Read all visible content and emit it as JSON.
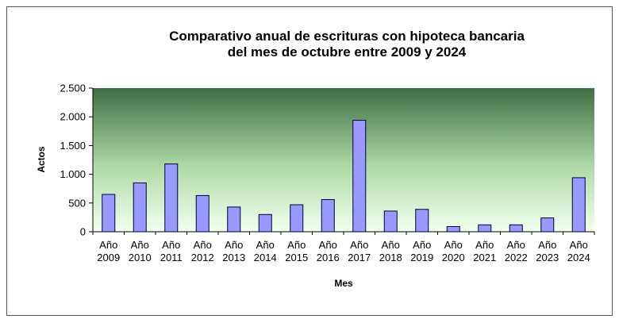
{
  "chart_data": {
    "type": "bar",
    "title": "Comparativo anual de escrituras con hipoteca bancaria",
    "subtitle": "del mes de octubre entre 2009 y 2024",
    "xlabel": "Mes",
    "ylabel": "Actos",
    "categories": [
      [
        "Año",
        "2009"
      ],
      [
        "Año",
        "2010"
      ],
      [
        "Año",
        "2011"
      ],
      [
        "Año",
        "2012"
      ],
      [
        "Año",
        "2013"
      ],
      [
        "Año",
        "2014"
      ],
      [
        "Año",
        "2015"
      ],
      [
        "Año",
        "2016"
      ],
      [
        "Año",
        "2017"
      ],
      [
        "Año",
        "2018"
      ],
      [
        "Año",
        "2019"
      ],
      [
        "Año",
        "2020"
      ],
      [
        "Año",
        "2021"
      ],
      [
        "Año",
        "2022"
      ],
      [
        "Año",
        "2023"
      ],
      [
        "Año",
        "2024"
      ]
    ],
    "values": [
      650,
      850,
      1180,
      630,
      430,
      300,
      470,
      560,
      1940,
      360,
      390,
      90,
      120,
      120,
      240,
      940
    ],
    "ylim": [
      0,
      2500
    ],
    "yticks": [
      0,
      500,
      1000,
      1500,
      2000,
      2500
    ],
    "ytick_labels": [
      "0",
      "500",
      "1.000",
      "1.500",
      "2.000",
      "2.500"
    ],
    "grid": false,
    "legend": "none",
    "colors": {
      "bar_fill": "#9999ff",
      "bar_stroke": "#000033",
      "plot_top": "#3e6e44",
      "plot_bottom": "#f4fff0"
    }
  }
}
